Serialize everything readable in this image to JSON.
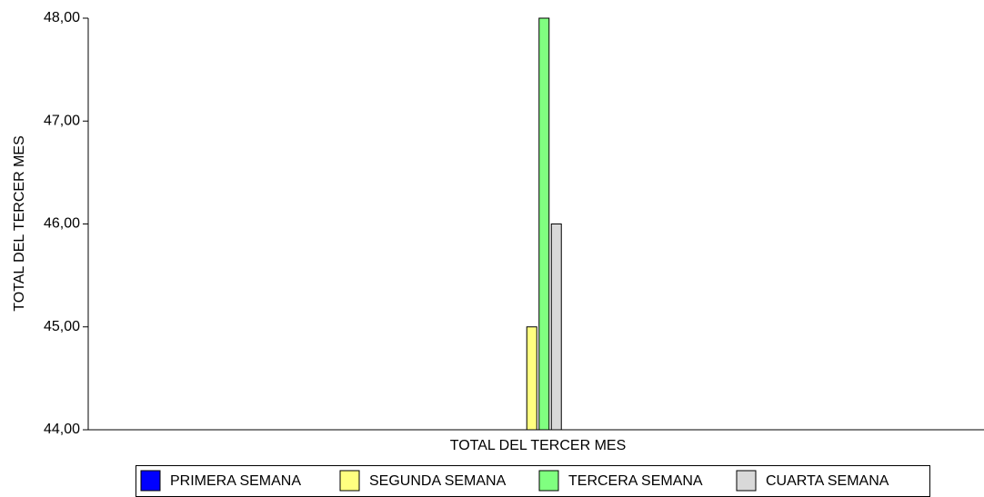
{
  "chart_data": {
    "type": "bar",
    "y_label": "TOTAL DEL TERCER MES",
    "categories": [
      "TOTAL DEL TERCER MES"
    ],
    "series": [
      {
        "name": "PRIMERA SEMANA",
        "color": "#0000ff",
        "values": [
          44
        ]
      },
      {
        "name": "SEGUNDA SEMANA",
        "color": "#ffff80",
        "values": [
          45
        ]
      },
      {
        "name": "TERCERA SEMANA",
        "color": "#80ff80",
        "values": [
          48
        ]
      },
      {
        "name": "CUARTA SEMANA",
        "color": "#d9d9d9",
        "values": [
          46
        ]
      }
    ],
    "ylim": [
      44,
      48
    ],
    "yticks": [
      {
        "value": 44,
        "label": "44,00"
      },
      {
        "value": 45,
        "label": "45,00"
      },
      {
        "value": 46,
        "label": "46,00"
      },
      {
        "value": 47,
        "label": "47,00"
      },
      {
        "value": 48,
        "label": "48,00"
      }
    ],
    "grid": false,
    "legend": "bottom"
  }
}
